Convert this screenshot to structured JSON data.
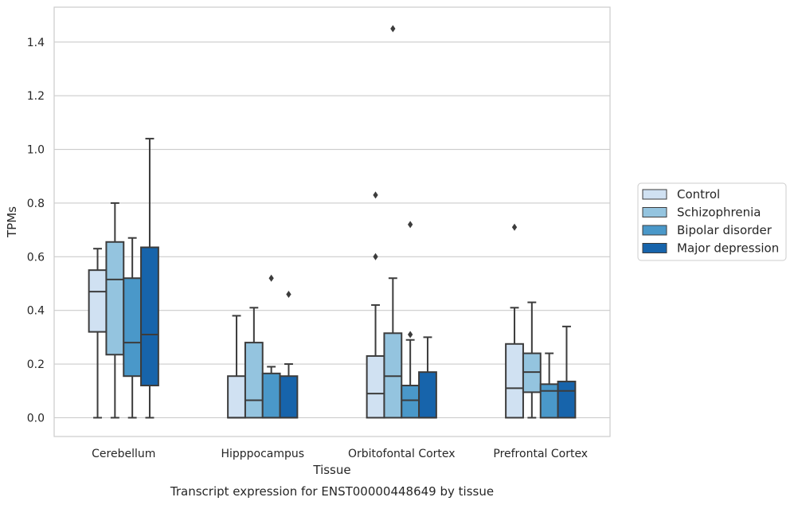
{
  "caption": "Transcript expression for ENST00000448649 by tissue",
  "chart_data": {
    "type": "box",
    "xlabel": "Tissue",
    "ylabel": "TPMs",
    "ylim": [
      -0.07,
      1.53
    ],
    "yticks": [
      0.0,
      0.2,
      0.4,
      0.6,
      0.8,
      1.0,
      1.2,
      1.4
    ],
    "ytick_labels": [
      "0.0",
      "0.2",
      "0.4",
      "0.6",
      "0.8",
      "1.0",
      "1.2",
      "1.4"
    ],
    "grid": "horizontal",
    "legend_position": "right",
    "categories": [
      "Cerebellum",
      "Hipppocampus",
      "Orbitofontal Cortex",
      "Prefrontal Cortex"
    ],
    "series": [
      {
        "name": "Control",
        "color": "#d0e1f2",
        "boxes": [
          {
            "min": 0.0,
            "q1": 0.32,
            "median": 0.47,
            "q3": 0.55,
            "max": 0.63,
            "outliers": []
          },
          {
            "min": 0.0,
            "q1": 0.0,
            "median": 0.0,
            "q3": 0.155,
            "max": 0.38,
            "outliers": []
          },
          {
            "min": 0.0,
            "q1": 0.0,
            "median": 0.09,
            "q3": 0.23,
            "max": 0.42,
            "outliers": [
              0.6,
              0.83
            ]
          },
          {
            "min": 0.0,
            "q1": 0.0,
            "median": 0.11,
            "q3": 0.275,
            "max": 0.41,
            "outliers": [
              0.71
            ]
          }
        ]
      },
      {
        "name": "Schizophrenia",
        "color": "#94c4df",
        "boxes": [
          {
            "min": 0.0,
            "q1": 0.235,
            "median": 0.515,
            "q3": 0.655,
            "max": 0.8,
            "outliers": []
          },
          {
            "min": 0.0,
            "q1": 0.0,
            "median": 0.065,
            "q3": 0.28,
            "max": 0.41,
            "outliers": []
          },
          {
            "min": 0.0,
            "q1": 0.0,
            "median": 0.155,
            "q3": 0.315,
            "max": 0.52,
            "outliers": [
              1.45
            ]
          },
          {
            "min": 0.0,
            "q1": 0.095,
            "median": 0.17,
            "q3": 0.24,
            "max": 0.43,
            "outliers": []
          }
        ]
      },
      {
        "name": "Bipolar disorder",
        "color": "#4a98c9",
        "boxes": [
          {
            "min": 0.0,
            "q1": 0.155,
            "median": 0.28,
            "q3": 0.52,
            "max": 0.67,
            "outliers": []
          },
          {
            "min": 0.0,
            "q1": 0.0,
            "median": 0.0,
            "q3": 0.165,
            "max": 0.19,
            "outliers": [
              0.52
            ]
          },
          {
            "min": 0.0,
            "q1": 0.0,
            "median": 0.065,
            "q3": 0.12,
            "max": 0.29,
            "outliers": [
              0.31,
              0.72
            ]
          },
          {
            "min": 0.0,
            "q1": 0.0,
            "median": 0.1,
            "q3": 0.125,
            "max": 0.24,
            "outliers": []
          }
        ]
      },
      {
        "name": "Major depression",
        "color": "#1764ab",
        "boxes": [
          {
            "min": 0.0,
            "q1": 0.12,
            "median": 0.31,
            "q3": 0.635,
            "max": 1.04,
            "outliers": []
          },
          {
            "min": 0.0,
            "q1": 0.0,
            "median": 0.0,
            "q3": 0.155,
            "max": 0.2,
            "outliers": [
              0.46
            ]
          },
          {
            "min": 0.0,
            "q1": 0.0,
            "median": 0.0,
            "q3": 0.17,
            "max": 0.3,
            "outliers": []
          },
          {
            "min": 0.0,
            "q1": 0.0,
            "median": 0.1,
            "q3": 0.135,
            "max": 0.34,
            "outliers": []
          }
        ]
      }
    ]
  }
}
